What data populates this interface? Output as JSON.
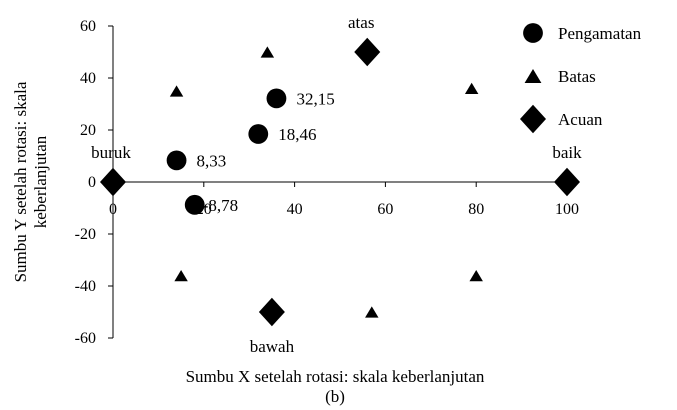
{
  "chart_data": {
    "type": "scatter",
    "title": "",
    "caption": "(b)",
    "xlabel": "Sumbu X setelah rotasi: skala keberlanjutan",
    "ylabel_lines": [
      "Sumbu Y setelah rotasi: skala",
      "keberlanjutan"
    ],
    "xlim": [
      0,
      100
    ],
    "ylim": [
      -60,
      60
    ],
    "x_ticks": [
      "0",
      "20",
      "40",
      "60",
      "80",
      "100"
    ],
    "y_ticks": [
      "60",
      "40",
      "20",
      "0",
      "-20",
      "-40",
      "-60"
    ],
    "grid": false,
    "legend_position": "top-right",
    "series": [
      {
        "name": "Pengamatan",
        "marker": "circle",
        "points": [
          {
            "x": 14,
            "y": 8.33,
            "label": "8,33"
          },
          {
            "x": 18,
            "y": -8.78,
            "label": "-8,78"
          },
          {
            "x": 32,
            "y": 18.46,
            "label": "18,46"
          },
          {
            "x": 36,
            "y": 32.15,
            "label": "32,15"
          }
        ]
      },
      {
        "name": "Batas",
        "marker": "triangle",
        "points": [
          {
            "x": 14,
            "y": 35
          },
          {
            "x": 34,
            "y": 50
          },
          {
            "x": 15,
            "y": -36
          },
          {
            "x": 57,
            "y": -50
          },
          {
            "x": 79,
            "y": 36
          },
          {
            "x": 80,
            "y": -36
          }
        ]
      },
      {
        "name": "Acuan",
        "marker": "diamond",
        "points": [
          {
            "x": 0,
            "y": 0,
            "label": "buruk"
          },
          {
            "x": 100,
            "y": 0,
            "label": "baik"
          },
          {
            "x": 56,
            "y": 50,
            "label": "atas"
          },
          {
            "x": 35,
            "y": -50,
            "label": "bawah"
          }
        ]
      }
    ],
    "colors": {
      "marker": "#000000",
      "axis": "#000000",
      "text": "#000000",
      "background": "#ffffff"
    }
  }
}
